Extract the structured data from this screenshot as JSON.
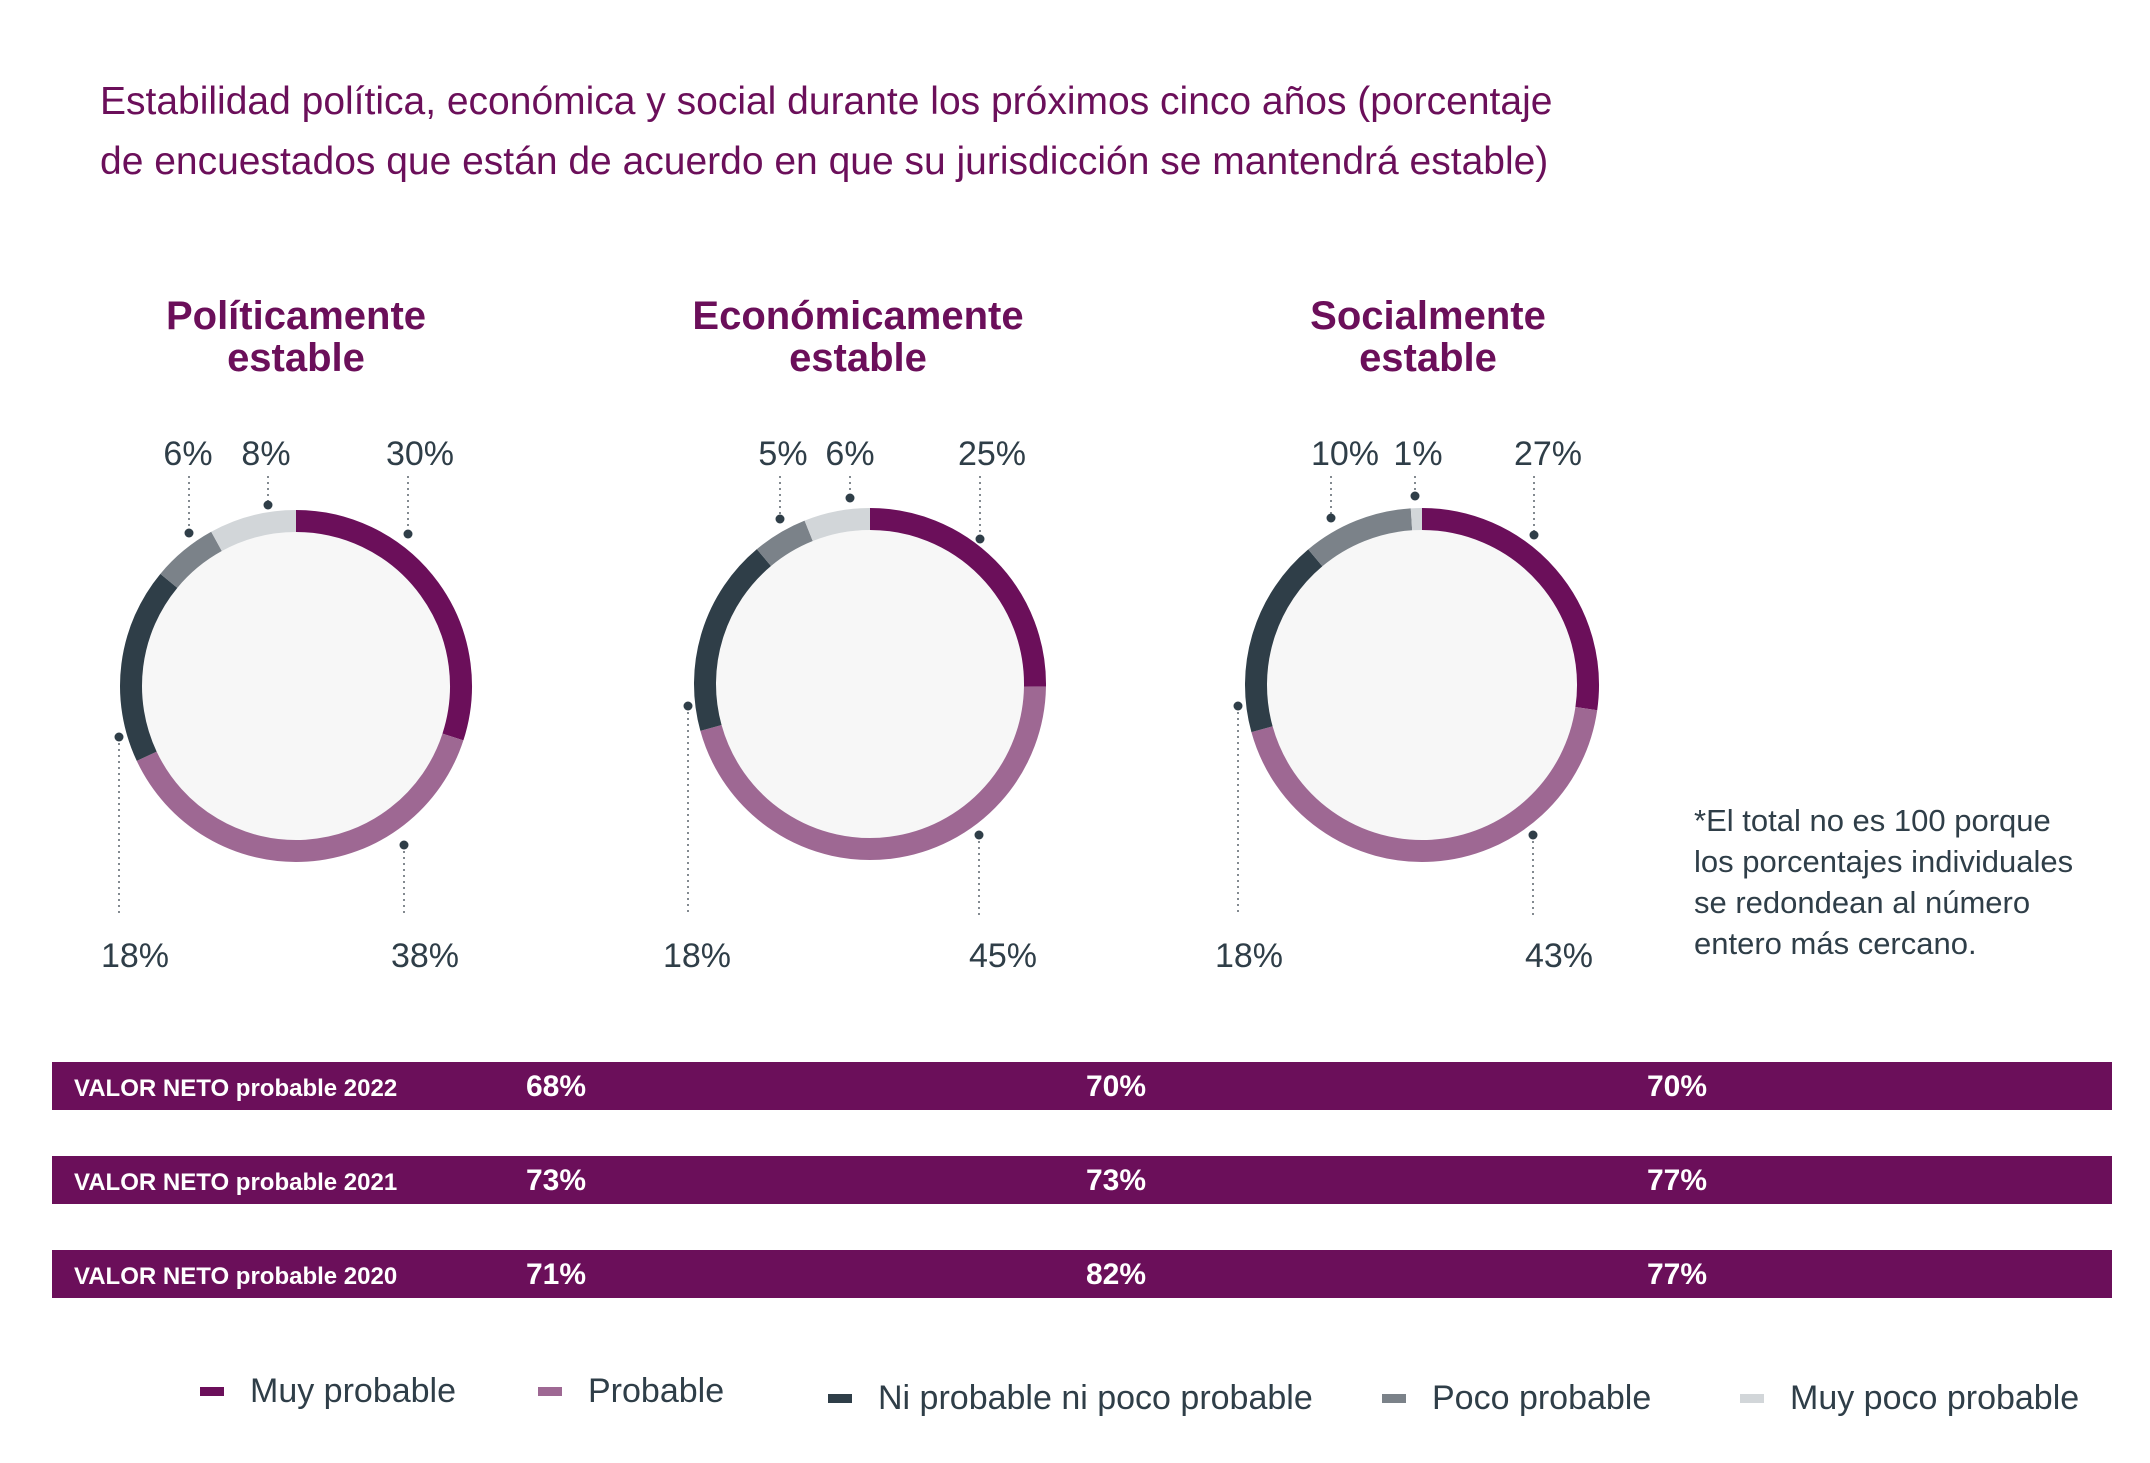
{
  "title": {
    "line1": "Estabilidad política, económica y social durante los próximos cinco años (porcentaje",
    "line2": "de encuestados que están de acuerdo en que su jurisdicción se mantendrá estable)"
  },
  "colors": {
    "muy_probable": "#6b0f5a",
    "probable": "#9e6893",
    "ni_ni": "#2f3e48",
    "poco_probable": "#7b8289",
    "muy_poco_probable": "#d2d6d9",
    "inner_fill": "#f7f7f7",
    "label_text": "#2f3e48",
    "net_bar": "#6b0f5a"
  },
  "chart_data": [
    {
      "type": "pie",
      "title": "Políticamente estable",
      "title_lines": [
        "Políticamente",
        "estable"
      ],
      "categories": [
        "Muy probable",
        "Probable",
        "Ni probable ni poco probable",
        "Poco probable",
        "Muy poco probable"
      ],
      "values": [
        30,
        38,
        18,
        6,
        8
      ],
      "labels": [
        "30%",
        "38%",
        "18%",
        "6%",
        "8%"
      ]
    },
    {
      "type": "pie",
      "title": "Económicamente estable",
      "title_lines": [
        "Económicamente",
        "estable"
      ],
      "categories": [
        "Muy probable",
        "Probable",
        "Ni probable ni poco probable",
        "Poco probable",
        "Muy poco probable"
      ],
      "values": [
        25,
        45,
        18,
        5,
        6
      ],
      "labels": [
        "25%",
        "45%",
        "18%",
        "5%",
        "6%"
      ]
    },
    {
      "type": "pie",
      "title": "Socialmente estable",
      "title_lines": [
        "Socialmente",
        "estable"
      ],
      "categories": [
        "Muy probable",
        "Probable",
        "Ni probable ni poco probable",
        "Poco probable",
        "Muy poco probable"
      ],
      "values": [
        27,
        43,
        18,
        10,
        1
      ],
      "labels": [
        "27%",
        "43%",
        "18%",
        "10%",
        "1%"
      ]
    },
    {
      "type": "table",
      "title": "VALOR NETO probable",
      "columns": [
        "Políticamente estable",
        "Económicamente estable",
        "Socialmente estable"
      ],
      "rows": [
        {
          "label": "VALOR NETO probable 2022",
          "values": [
            "68%",
            "70%",
            "70%"
          ]
        },
        {
          "label": "VALOR NETO probable 2021",
          "values": [
            "73%",
            "73%",
            "77%"
          ]
        },
        {
          "label": "VALOR NETO probable 2020",
          "values": [
            "71%",
            "82%",
            "77%"
          ]
        }
      ]
    }
  ],
  "footnote": {
    "lines": [
      "*El total no es 100 porque",
      "los porcentajes individuales",
      "se redondean al número",
      "entero más cercano."
    ]
  },
  "legend": [
    {
      "label": "Muy probable",
      "color_key": "muy_probable"
    },
    {
      "label": "Probable",
      "color_key": "probable"
    },
    {
      "label": "Ni probable ni poco probable",
      "color_key": "ni_ni"
    },
    {
      "label": "Poco probable",
      "color_key": "poco_probable"
    },
    {
      "label": "Muy poco probable",
      "color_key": "muy_poco_probable"
    }
  ]
}
